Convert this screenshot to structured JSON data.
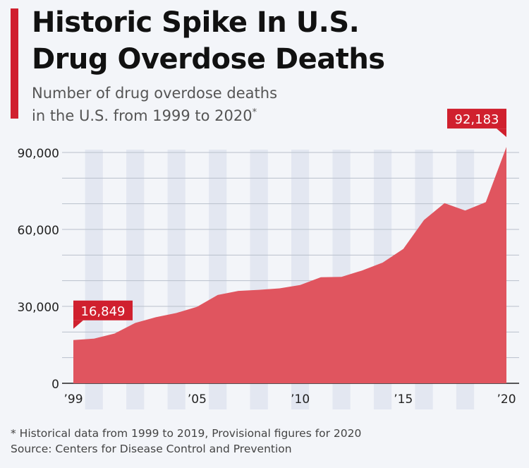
{
  "header": {
    "title_line1": "Historic Spike In U.S.",
    "title_line2": "Drug Overdose Deaths",
    "subtitle_line1": "Number of drug overdose deaths",
    "subtitle_line2": "in the U.S. from 1999 to 2020",
    "subtitle_mark": "*"
  },
  "footer": {
    "note": "* Historical data from 1999 to 2019, Provisional figures for 2020",
    "source": "Source: Centers for Disease Control and Prevention"
  },
  "colors": {
    "accent": "#d0202e",
    "area": "#e0555f",
    "label_bg": "#d0202e",
    "band": "#e3e7f1",
    "grid": "#b9c0cc"
  },
  "chart_data": {
    "type": "area",
    "x": [
      1999,
      2000,
      2001,
      2002,
      2003,
      2004,
      2005,
      2006,
      2007,
      2008,
      2009,
      2010,
      2011,
      2012,
      2013,
      2014,
      2015,
      2016,
      2017,
      2018,
      2019,
      2020
    ],
    "series": [
      {
        "values": [
          16849,
          17415,
          19394,
          23518,
          25785,
          27424,
          29813,
          34425,
          36010,
          36450,
          37004,
          38329,
          41340,
          41502,
          43982,
          47055,
          52404,
          63632,
          70237,
          67367,
          70630,
          92183
        ]
      }
    ],
    "ylim": [
      0,
      90000
    ],
    "yticks": [
      0,
      30000,
      60000,
      90000
    ],
    "ytick_labels": [
      "0",
      "30,000",
      "60,000",
      "90,000"
    ],
    "xtick_labels": [
      {
        "year": 1999,
        "label": "’99"
      },
      {
        "year": 2005,
        "label": "’05"
      },
      {
        "year": 2010,
        "label": "’10"
      },
      {
        "year": 2015,
        "label": "’15"
      },
      {
        "year": 2020,
        "label": "’20"
      }
    ],
    "annotations": [
      {
        "year": 1999,
        "value": 16849,
        "text": "16,849"
      },
      {
        "year": 2020,
        "value": 92183,
        "text": "92,183"
      }
    ],
    "grid": true
  }
}
